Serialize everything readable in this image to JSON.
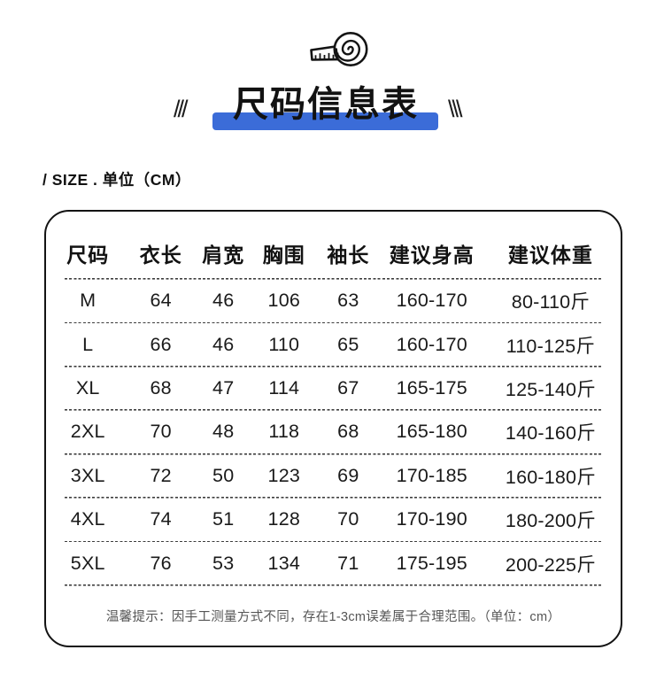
{
  "header": {
    "icon": "measuring-tape",
    "title": "尺码信息表",
    "left_marks": "///",
    "right_marks": "\\\\\\",
    "accent_color": "#3b6cd8",
    "subtitle": "/ SIZE . 单位（CM）"
  },
  "size_table": {
    "columns": [
      "尺码",
      "衣长",
      "肩宽",
      "胸围",
      "袖长",
      "建议身高",
      "建议体重"
    ],
    "rows": [
      [
        "M",
        "64",
        "46",
        "106",
        "63",
        "160-170",
        "80-110斤"
      ],
      [
        "L",
        "66",
        "46",
        "110",
        "65",
        "160-170",
        "110-125斤"
      ],
      [
        "XL",
        "68",
        "47",
        "114",
        "67",
        "165-175",
        "125-140斤"
      ],
      [
        "2XL",
        "70",
        "48",
        "118",
        "68",
        "165-180",
        "140-160斤"
      ],
      [
        "3XL",
        "72",
        "50",
        "123",
        "69",
        "170-185",
        "160-180斤"
      ],
      [
        "4XL",
        "74",
        "51",
        "128",
        "70",
        "170-190",
        "180-200斤"
      ],
      [
        "5XL",
        "76",
        "53",
        "134",
        "71",
        "175-195",
        "200-225斤"
      ]
    ],
    "note": "温馨提示：因手工测量方式不同，存在1-3cm误差属于合理范围。（单位：cm）"
  }
}
